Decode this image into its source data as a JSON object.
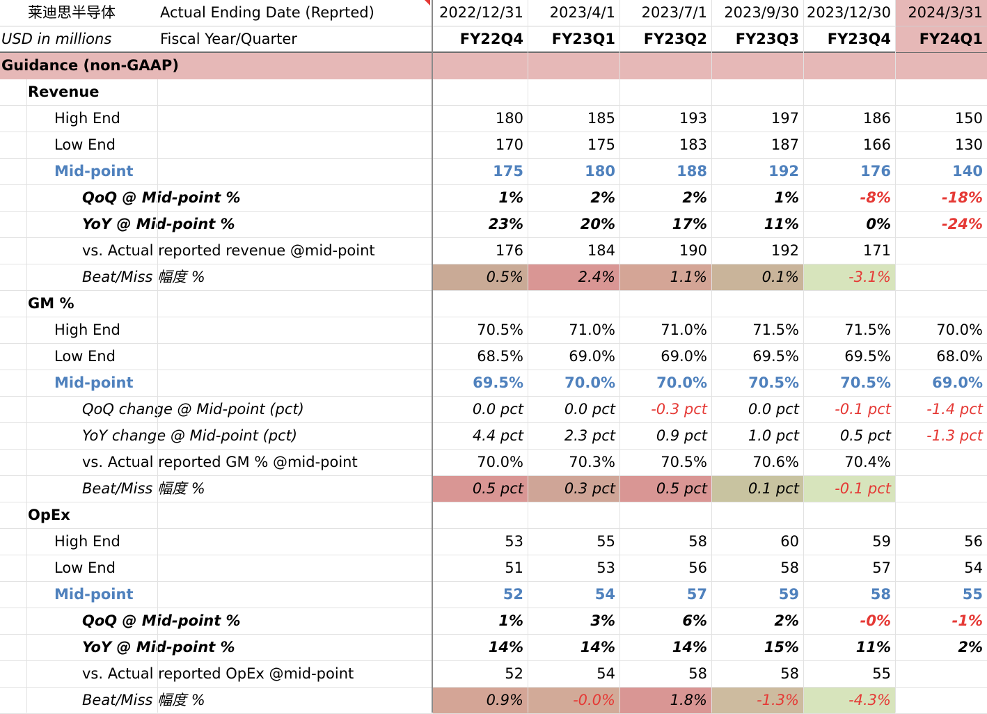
{
  "header": {
    "company": "莱迪思半导体",
    "date_label": "Actual Ending Date (Reprted)",
    "unit_label": "USD in millions",
    "fy_label": "Fiscal Year/Quarter",
    "dates": [
      "2022/12/31",
      "2023/4/1",
      "2023/7/1",
      "2023/9/30",
      "2023/12/30",
      "2024/3/31"
    ],
    "quarters": [
      "FY22Q4",
      "FY23Q1",
      "FY23Q2",
      "FY23Q3",
      "FY23Q4",
      "FY24Q1"
    ]
  },
  "colors": {
    "section_bg": "#e6b8b7",
    "mid_text": "#4f81bd",
    "negative_text": "#e53935",
    "beat_strong": "#d99694",
    "beat_mid": "#c9aa96",
    "beat_neutral": "#c8c3a0",
    "miss_green": "#d7e4bc"
  },
  "sections": [
    {
      "section_title": "Guidance (non-GAAP)",
      "groups": [
        {
          "title": "Revenue",
          "rows": [
            {
              "label": "High End",
              "level": 2,
              "style": "normal",
              "values": [
                "180",
                "185",
                "193",
                "197",
                "186",
                "150"
              ]
            },
            {
              "label": "Low End",
              "level": 2,
              "style": "normal",
              "values": [
                "170",
                "175",
                "183",
                "187",
                "166",
                "130"
              ]
            },
            {
              "label": "Mid-point",
              "level": 2,
              "style": "mid",
              "values": [
                "175",
                "180",
                "188",
                "192",
                "176",
                "140"
              ]
            },
            {
              "label": "QoQ @ Mid-point %",
              "level": 3,
              "style": "bi",
              "values": [
                "1%",
                "2%",
                "2%",
                "1%",
                "-8%",
                "-18%"
              ]
            },
            {
              "label": "YoY @ Mid-point %",
              "level": 3,
              "style": "bi",
              "values": [
                "23%",
                "20%",
                "17%",
                "11%",
                "0%",
                "-24%"
              ]
            },
            {
              "label": "vs. Actual reported revenue @mid-point",
              "level": 3,
              "style": "normal",
              "values": [
                "176",
                "184",
                "190",
                "192",
                "171",
                ""
              ]
            },
            {
              "label": "Beat/Miss 幅度 %",
              "level": 3,
              "style": "i",
              "values": [
                "0.5%",
                "2.4%",
                "1.1%",
                "0.1%",
                "-3.1%",
                ""
              ],
              "fills": [
                "#c9aa96",
                "#d99694",
                "#d4a596",
                "#c9b49a",
                "#d7e4bc",
                ""
              ]
            }
          ]
        },
        {
          "title": "GM %",
          "rows": [
            {
              "label": "High End",
              "level": 2,
              "style": "normal",
              "values": [
                "70.5%",
                "71.0%",
                "71.0%",
                "71.5%",
                "71.5%",
                "70.0%"
              ]
            },
            {
              "label": "Low End",
              "level": 2,
              "style": "normal",
              "values": [
                "68.5%",
                "69.0%",
                "69.0%",
                "69.5%",
                "69.5%",
                "68.0%"
              ]
            },
            {
              "label": "Mid-point",
              "level": 2,
              "style": "mid",
              "values": [
                "69.5%",
                "70.0%",
                "70.0%",
                "70.5%",
                "70.5%",
                "69.0%"
              ]
            },
            {
              "label": "QoQ change @ Mid-point (pct)",
              "level": 3,
              "style": "i",
              "values": [
                "0.0 pct",
                "0.0 pct",
                "-0.3 pct",
                "0.0 pct",
                "-0.1 pct",
                "-1.4 pct"
              ]
            },
            {
              "label": "YoY change @ Mid-point (pct)",
              "level": 3,
              "style": "i",
              "values": [
                "4.4 pct",
                "2.3 pct",
                "0.9 pct",
                "1.0 pct",
                "0.5 pct",
                "-1.3 pct"
              ]
            },
            {
              "label": "vs. Actual reported GM % @mid-point",
              "level": 3,
              "style": "normal",
              "values": [
                "70.0%",
                "70.3%",
                "70.5%",
                "70.6%",
                "70.4%",
                ""
              ]
            },
            {
              "label": "Beat/Miss 幅度 %",
              "level": 3,
              "style": "i",
              "values": [
                "0.5 pct",
                "0.3 pct",
                "0.5 pct",
                "0.1 pct",
                "-0.1 pct",
                ""
              ],
              "fills": [
                "#d99694",
                "#cfa597",
                "#d99694",
                "#c8c3a0",
                "#d7e4bc",
                ""
              ]
            }
          ]
        },
        {
          "title": "OpEx",
          "rows": [
            {
              "label": "High End",
              "level": 2,
              "style": "normal",
              "values": [
                "53",
                "55",
                "58",
                "60",
                "59",
                "56"
              ]
            },
            {
              "label": "Low End",
              "level": 2,
              "style": "normal",
              "values": [
                "51",
                "53",
                "56",
                "58",
                "57",
                "54"
              ]
            },
            {
              "label": "Mid-point",
              "level": 2,
              "style": "mid",
              "values": [
                "52",
                "54",
                "57",
                "59",
                "58",
                "55"
              ]
            },
            {
              "label": "QoQ @ Mid-point %",
              "level": 3,
              "style": "bi",
              "values": [
                "1%",
                "3%",
                "6%",
                "2%",
                "-0%",
                "-1%"
              ]
            },
            {
              "label": "YoY @ Mid-point %",
              "level": 3,
              "style": "bi",
              "values": [
                "14%",
                "14%",
                "14%",
                "15%",
                "11%",
                "2%"
              ]
            },
            {
              "label": "vs. Actual reported OpEx @mid-point",
              "level": 3,
              "style": "normal",
              "values": [
                "52",
                "54",
                "58",
                "58",
                "55",
                ""
              ]
            },
            {
              "label": "Beat/Miss 幅度 %",
              "level": 3,
              "style": "i",
              "values": [
                "0.9%",
                "-0.0%",
                "1.8%",
                "-1.3%",
                "-4.3%",
                ""
              ],
              "fills": [
                "#d4a596",
                "#d2aa98",
                "#d99694",
                "#cdbb9f",
                "#d7e4bc",
                ""
              ]
            }
          ]
        }
      ]
    }
  ]
}
